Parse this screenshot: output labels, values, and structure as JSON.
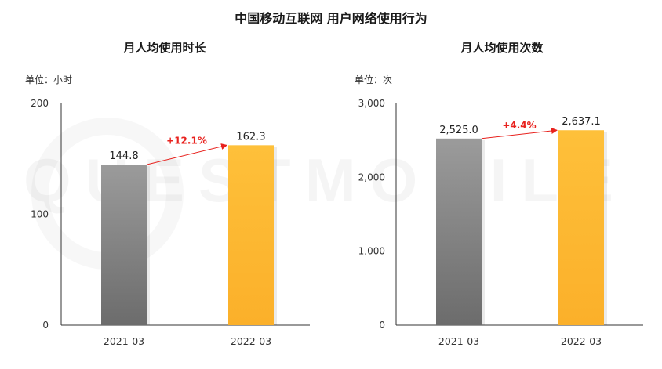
{
  "header": {
    "title": "中国移动互联网 用户网络使用行为"
  },
  "watermark": {
    "text": "QUESTMOBILE"
  },
  "colors": {
    "bar_2021": "#8a8a8a",
    "bar_2022": "#fdb92c",
    "change_arrow": "#e8221e",
    "axis": "#333333"
  },
  "chart_data": [
    {
      "type": "bar",
      "title": "月人均使用时长",
      "unit_label": "单位：小时",
      "categories": [
        "2021-03",
        "2022-03"
      ],
      "values": [
        144.8,
        162.3
      ],
      "value_labels": [
        "144.8",
        "162.3"
      ],
      "y_ticks": [
        "200",
        "100",
        "0"
      ],
      "y_tick_values": [
        200,
        100,
        0
      ],
      "ylim": [
        0,
        200
      ],
      "change_label": "+12.1%",
      "grid": false,
      "legend": "none"
    },
    {
      "type": "bar",
      "title": "月人均使用次数",
      "unit_label": "单位：次",
      "categories": [
        "2021-03",
        "2022-03"
      ],
      "values": [
        2525.0,
        2637.1
      ],
      "value_labels": [
        "2,525.0",
        "2,637.1"
      ],
      "y_ticks": [
        "3,000",
        "2,000",
        "1,000",
        "0"
      ],
      "y_tick_values": [
        3000,
        2000,
        1000,
        0
      ],
      "ylim": [
        0,
        3000
      ],
      "change_label": "+4.4%",
      "grid": false,
      "legend": "none"
    }
  ]
}
